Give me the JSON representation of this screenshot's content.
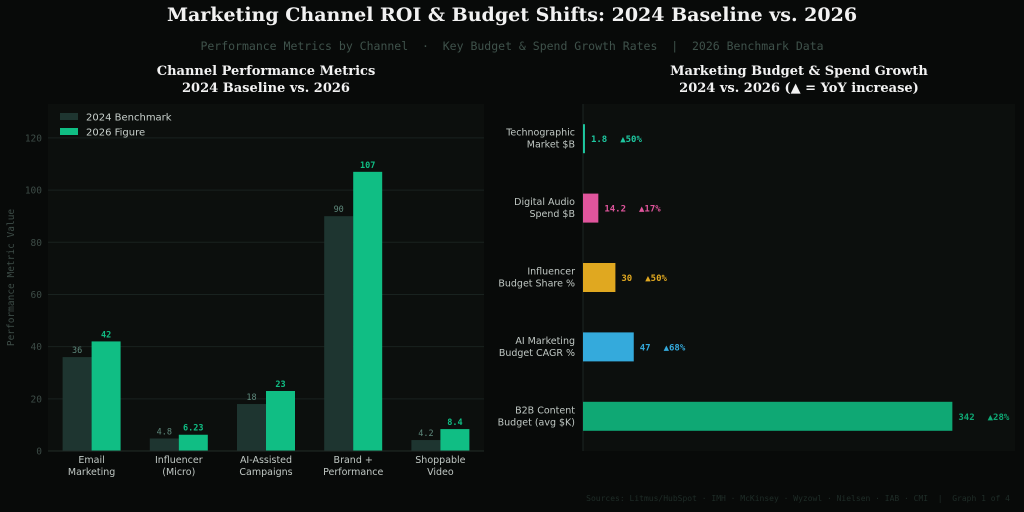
{
  "header": {
    "title": "Marketing Channel ROI & Budget Shifts: 2024 Baseline vs. 2026",
    "subtitle": "Performance Metrics by Channel  ·  Key Budget & Spend Growth Rates  |  2026 Benchmark Data"
  },
  "footer": {
    "sources": "Sources: Litmus/HubSpot · IMH · McKinsey · Wyzowl · Nielsen · IAB · CMI  |  Graph 1 of 4"
  },
  "colors": {
    "background": "#080a09",
    "plot_bg": "#0c0f0d",
    "series_2024": "#1e3530",
    "series_2026": "#10be84",
    "label_2024": "#5f8a7d",
    "label_2026": "#10be84",
    "axis_text": "#3d4c47",
    "tick_text": "#c0c8c4"
  },
  "chart_data": [
    {
      "type": "bar",
      "title_line1": "Channel Performance Metrics",
      "title_line2": "2024 Baseline vs. 2026",
      "ylabel": "Performance Metric Value",
      "xlabel": "",
      "ylim": [
        0,
        133
      ],
      "yticks": [
        0,
        20,
        40,
        60,
        80,
        100,
        120
      ],
      "grid": true,
      "legend_position": "top-left",
      "categories": [
        [
          "Email",
          "Marketing"
        ],
        [
          "Influencer",
          "(Micro)"
        ],
        [
          "AI-Assisted",
          "Campaigns"
        ],
        [
          "Brand +",
          "Performance"
        ],
        [
          "Shoppable",
          "Video"
        ]
      ],
      "series": [
        {
          "name": "2024 Benchmark",
          "values": [
            36,
            4.8,
            18,
            90,
            4.2
          ],
          "labels": [
            "36",
            "4.8",
            "18",
            "90",
            "4.2"
          ]
        },
        {
          "name": "2026 Figure",
          "values": [
            42,
            6.23,
            23,
            107,
            8.4
          ],
          "labels": [
            "42",
            "6.23",
            "23",
            "107",
            "8.4"
          ]
        }
      ]
    },
    {
      "type": "bar",
      "orientation": "horizontal",
      "title_line1": "Marketing Budget & Spend Growth",
      "title_line2": "2024 vs. 2026  (▲ = YoY increase)",
      "xlim": [
        0,
        400
      ],
      "items": [
        {
          "label": [
            "Technographic",
            "Market $B"
          ],
          "value": 1.8,
          "value_label": "1.8",
          "growth": "▲50%",
          "color": "#1ec8a0"
        },
        {
          "label": [
            "Digital Audio",
            "Spend $B"
          ],
          "value": 14.2,
          "value_label": "14.2",
          "growth": "▲17%",
          "color": "#e0559c"
        },
        {
          "label": [
            "Influencer",
            "Budget Share %"
          ],
          "value": 30,
          "value_label": "30",
          "growth": "▲50%",
          "color": "#e0a820"
        },
        {
          "label": [
            "AI Marketing",
            "Budget CAGR %"
          ],
          "value": 47,
          "value_label": "47",
          "growth": "▲68%",
          "color": "#34aadc"
        },
        {
          "label": [
            "B2B Content",
            "Budget (avg $K)"
          ],
          "value": 342,
          "value_label": "342",
          "growth": "▲28%",
          "color": "#0fa874"
        }
      ]
    }
  ]
}
